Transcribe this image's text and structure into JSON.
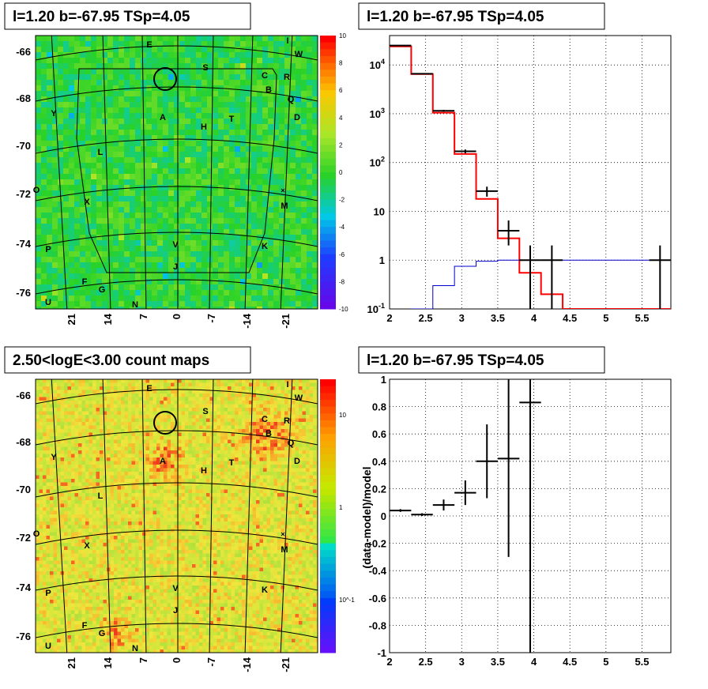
{
  "colors": {
    "model_line": "#ff0000",
    "sub_model_line": "#0000cc",
    "data": "#000000",
    "grid": "#000000"
  },
  "chart_data": [
    {
      "type": "heatmap",
      "title": "l=1.20 b=-67.95 TSp=4.05",
      "colormap": "rainbow-green-centered",
      "zlim": [
        -10,
        10
      ],
      "z_ticks": [
        "10",
        "8",
        "6",
        "4",
        "2",
        "0",
        "-2",
        "-4",
        "-6",
        "-8",
        "-10"
      ],
      "y_ticks": [
        "-66",
        "-68",
        "-70",
        "-72",
        "-74",
        "-76"
      ],
      "x_ticks": [
        "21",
        "14",
        "7",
        "0",
        "-7",
        "-14",
        "-21"
      ],
      "sources": [
        "E",
        "I",
        "W",
        "S",
        "C",
        "R",
        "B",
        "Q",
        "Y",
        "A",
        "H",
        "T",
        "D",
        "L",
        "O",
        "X",
        "M",
        "P",
        "V",
        "K",
        "J",
        "F",
        "G",
        "U",
        "N"
      ]
    },
    {
      "type": "line",
      "title": "l=1.20 b=-67.95 TSp=4.05",
      "log_y": true,
      "xlim": [
        2,
        5.9
      ],
      "ylim": [
        0.1,
        40000
      ],
      "x_ticks": [
        "2",
        "2.5",
        "3",
        "3.5",
        "4",
        "4.5",
        "5",
        "5.5"
      ],
      "y_ticks": [
        "10^4",
        "10^3",
        "10^2",
        "10",
        "1",
        "10^-1"
      ],
      "grid": true,
      "series": [
        {
          "style": "step",
          "color": "#ff0000",
          "bin_edges": [
            2,
            2.3,
            2.6,
            2.9,
            3.2,
            3.5,
            3.8,
            4.1,
            4.4,
            5.9
          ],
          "values": [
            24000,
            6500,
            1050,
            150,
            18,
            2.8,
            0.55,
            0.2,
            0.1
          ]
        },
        {
          "style": "step",
          "color": "#0000cc",
          "bin_edges": [
            2.3,
            2.6,
            2.9,
            3.2,
            3.5,
            3.8,
            4.1,
            4.4,
            5.9
          ],
          "values": [
            0.1,
            0.3,
            0.75,
            0.95,
            1.0,
            1.0,
            1.0,
            1.0
          ]
        },
        {
          "style": "points",
          "color": "#000000",
          "points": [
            {
              "x": 2.15,
              "y": 25000,
              "xerr": 0.15,
              "ylo": 24500,
              "yhi": 25500
            },
            {
              "x": 2.45,
              "y": 6600,
              "xerr": 0.15,
              "ylo": 6500,
              "yhi": 6700
            },
            {
              "x": 2.75,
              "y": 1150,
              "xerr": 0.15,
              "ylo": 1100,
              "yhi": 1200
            },
            {
              "x": 3.05,
              "y": 170,
              "xerr": 0.15,
              "ylo": 155,
              "yhi": 185
            },
            {
              "x": 3.35,
              "y": 26,
              "xerr": 0.15,
              "ylo": 20,
              "yhi": 32
            },
            {
              "x": 3.65,
              "y": 4,
              "xerr": 0.15,
              "ylo": 2,
              "yhi": 6.5
            },
            {
              "x": 3.95,
              "y": 1,
              "xerr": 0.15,
              "ylo": 0.1,
              "yhi": 2
            },
            {
              "x": 4.25,
              "y": 1,
              "xerr": 0.15,
              "ylo": 0.1,
              "yhi": 2
            },
            {
              "x": 5.75,
              "y": 1,
              "xerr": 0.15,
              "ylo": 0.1,
              "yhi": 2
            }
          ]
        }
      ]
    },
    {
      "type": "heatmap",
      "title": "2.50<logE<3.00 count maps",
      "colormap": "rainbow-log",
      "z_ticks": [
        "10",
        "1",
        "10^-1"
      ],
      "y_ticks": [
        "-66",
        "-68",
        "-70",
        "-72",
        "-74",
        "-76"
      ],
      "x_ticks": [
        "21",
        "14",
        "7",
        "0",
        "-7",
        "-14",
        "-21"
      ],
      "sources": [
        "E",
        "I",
        "W",
        "S",
        "C",
        "R",
        "B",
        "Q",
        "Y",
        "A",
        "H",
        "T",
        "D",
        "L",
        "O",
        "X",
        "M",
        "P",
        "V",
        "K",
        "J",
        "F",
        "G",
        "U",
        "N"
      ]
    },
    {
      "type": "scatter",
      "title": "l=1.20 b=-67.95 TSp=4.05",
      "ylabel": "(data-model)/model",
      "xlim": [
        2,
        5.9
      ],
      "ylim": [
        -1,
        1
      ],
      "x_ticks": [
        "2",
        "2.5",
        "3",
        "3.5",
        "4",
        "4.5",
        "5",
        "5.5"
      ],
      "y_ticks": [
        "1",
        "0.8",
        "0.6",
        "0.4",
        "0.2",
        "0",
        "-0.2",
        "-0.4",
        "-0.6",
        "-0.8",
        "-1"
      ],
      "grid": true,
      "points": [
        {
          "x": 2.15,
          "y": 0.04,
          "xerr": 0.15,
          "ylo": 0.03,
          "yhi": 0.05
        },
        {
          "x": 2.45,
          "y": 0.01,
          "xerr": 0.15,
          "ylo": 0.0,
          "yhi": 0.02
        },
        {
          "x": 2.75,
          "y": 0.08,
          "xerr": 0.15,
          "ylo": 0.04,
          "yhi": 0.12
        },
        {
          "x": 3.05,
          "y": 0.17,
          "xerr": 0.15,
          "ylo": 0.08,
          "yhi": 0.26
        },
        {
          "x": 3.35,
          "y": 0.4,
          "xerr": 0.15,
          "ylo": 0.13,
          "yhi": 0.67
        },
        {
          "x": 3.65,
          "y": 0.42,
          "xerr": 0.15,
          "ylo": -0.3,
          "yhi": 1.0
        },
        {
          "x": 3.95,
          "y": 0.83,
          "xerr": 0.15,
          "ylo": -1.0,
          "yhi": 1.0
        }
      ]
    }
  ]
}
